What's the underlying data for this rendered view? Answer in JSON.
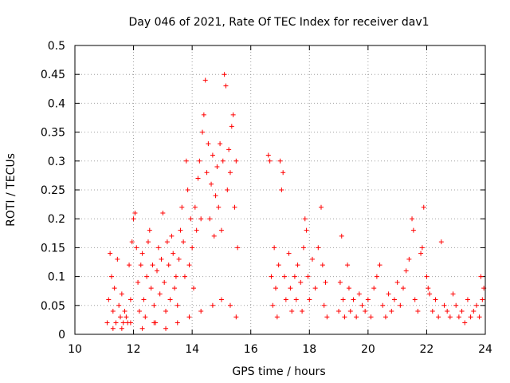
{
  "chart_data": {
    "type": "scatter",
    "title": "Day 046 of 2021, Rate Of TEC Index for receiver dav1",
    "xlabel": "GPS time / hours",
    "ylabel": "ROTI / TECUs",
    "xlim": [
      10,
      24
    ],
    "ylim": [
      0,
      0.5
    ],
    "x_ticks": [
      10,
      12,
      14,
      16,
      18,
      20,
      22,
      24
    ],
    "y_ticks": [
      0,
      0.05,
      0.1,
      0.15,
      0.2,
      0.25,
      0.3,
      0.35,
      0.4,
      0.45,
      0.5
    ],
    "x_tick_labels": [
      "10",
      "12",
      "14",
      "16",
      "18",
      "20",
      "22",
      "24"
    ],
    "y_tick_labels": [
      "0",
      "0.05",
      "0.1",
      "0.15",
      "0.2",
      "0.25",
      "0.3",
      "0.35",
      "0.4",
      "0.45",
      "0.5"
    ],
    "grid": true,
    "marker": "+",
    "color": "#ff0000",
    "series": [
      {
        "points": [
          [
            11.1,
            0.02
          ],
          [
            11.15,
            0.06
          ],
          [
            11.2,
            0.14
          ],
          [
            11.25,
            0.1
          ],
          [
            11.3,
            0.04
          ],
          [
            11.35,
            0.08
          ],
          [
            11.4,
            0.02
          ],
          [
            11.45,
            0.13
          ],
          [
            11.5,
            0.05
          ],
          [
            11.55,
            0.03
          ],
          [
            11.6,
            0.07
          ],
          [
            11.65,
            0.02
          ],
          [
            11.7,
            0.04
          ],
          [
            11.75,
            0.03
          ],
          [
            11.8,
            0.02
          ],
          [
            11.85,
            0.12
          ],
          [
            11.9,
            0.06
          ],
          [
            11.95,
            0.16
          ],
          [
            12.0,
            0.2
          ],
          [
            12.05,
            0.21
          ],
          [
            12.1,
            0.15
          ],
          [
            12.15,
            0.09
          ],
          [
            12.2,
            0.04
          ],
          [
            12.25,
            0.12
          ],
          [
            12.3,
            0.14
          ],
          [
            12.35,
            0.06
          ],
          [
            12.4,
            0.03
          ],
          [
            12.45,
            0.1
          ],
          [
            12.5,
            0.16
          ],
          [
            12.55,
            0.18
          ],
          [
            12.6,
            0.08
          ],
          [
            12.65,
            0.12
          ],
          [
            12.7,
            0.05
          ],
          [
            12.75,
            0.02
          ],
          [
            12.8,
            0.11
          ],
          [
            12.85,
            0.15
          ],
          [
            12.9,
            0.07
          ],
          [
            12.95,
            0.13
          ],
          [
            13.0,
            0.21
          ],
          [
            13.05,
            0.09
          ],
          [
            13.1,
            0.04
          ],
          [
            13.15,
            0.16
          ],
          [
            13.2,
            0.12
          ],
          [
            13.25,
            0.06
          ],
          [
            13.3,
            0.17
          ],
          [
            13.35,
            0.14
          ],
          [
            13.4,
            0.08
          ],
          [
            13.45,
            0.1
          ],
          [
            13.5,
            0.05
          ],
          [
            13.55,
            0.13
          ],
          [
            13.6,
            0.18
          ],
          [
            13.65,
            0.22
          ],
          [
            13.7,
            0.16
          ],
          [
            13.75,
            0.1
          ],
          [
            13.8,
            0.3
          ],
          [
            13.85,
            0.25
          ],
          [
            13.9,
            0.12
          ],
          [
            13.95,
            0.2
          ],
          [
            14.0,
            0.15
          ],
          [
            14.05,
            0.08
          ],
          [
            14.1,
            0.22
          ],
          [
            14.15,
            0.18
          ],
          [
            14.2,
            0.27
          ],
          [
            14.25,
            0.3
          ],
          [
            14.3,
            0.2
          ],
          [
            14.35,
            0.35
          ],
          [
            14.4,
            0.38
          ],
          [
            14.45,
            0.44
          ],
          [
            14.5,
            0.28
          ],
          [
            14.55,
            0.33
          ],
          [
            14.6,
            0.2
          ],
          [
            14.65,
            0.26
          ],
          [
            14.7,
            0.31
          ],
          [
            14.75,
            0.17
          ],
          [
            14.8,
            0.24
          ],
          [
            14.85,
            0.29
          ],
          [
            14.9,
            0.22
          ],
          [
            14.95,
            0.33
          ],
          [
            15.0,
            0.18
          ],
          [
            15.05,
            0.3
          ],
          [
            15.1,
            0.45
          ],
          [
            15.15,
            0.43
          ],
          [
            15.2,
            0.25
          ],
          [
            15.25,
            0.32
          ],
          [
            15.3,
            0.28
          ],
          [
            15.35,
            0.36
          ],
          [
            15.4,
            0.38
          ],
          [
            15.45,
            0.22
          ],
          [
            15.5,
            0.3
          ],
          [
            15.55,
            0.15
          ],
          [
            11.3,
            0.01
          ],
          [
            11.6,
            0.01
          ],
          [
            11.9,
            0.02
          ],
          [
            12.3,
            0.01
          ],
          [
            12.7,
            0.02
          ],
          [
            13.1,
            0.01
          ],
          [
            13.5,
            0.02
          ],
          [
            13.9,
            0.03
          ],
          [
            14.3,
            0.04
          ],
          [
            14.7,
            0.05
          ],
          [
            15.0,
            0.06
          ],
          [
            15.3,
            0.05
          ],
          [
            15.5,
            0.03
          ],
          [
            16.6,
            0.31
          ],
          [
            16.65,
            0.3
          ],
          [
            16.7,
            0.1
          ],
          [
            16.75,
            0.05
          ],
          [
            16.8,
            0.15
          ],
          [
            16.85,
            0.08
          ],
          [
            16.9,
            0.03
          ],
          [
            16.95,
            0.12
          ],
          [
            17.0,
            0.3
          ],
          [
            17.05,
            0.25
          ],
          [
            17.1,
            0.28
          ],
          [
            17.15,
            0.1
          ],
          [
            17.2,
            0.06
          ],
          [
            17.3,
            0.14
          ],
          [
            17.35,
            0.08
          ],
          [
            17.4,
            0.04
          ],
          [
            17.5,
            0.1
          ],
          [
            17.55,
            0.06
          ],
          [
            17.6,
            0.12
          ],
          [
            17.7,
            0.09
          ],
          [
            17.75,
            0.04
          ],
          [
            17.8,
            0.15
          ],
          [
            17.85,
            0.2
          ],
          [
            17.9,
            0.18
          ],
          [
            17.95,
            0.1
          ],
          [
            18.0,
            0.06
          ],
          [
            18.1,
            0.13
          ],
          [
            18.2,
            0.08
          ],
          [
            18.3,
            0.15
          ],
          [
            18.4,
            0.22
          ],
          [
            18.45,
            0.12
          ],
          [
            18.5,
            0.05
          ],
          [
            18.55,
            0.09
          ],
          [
            18.6,
            0.03
          ],
          [
            19.0,
            0.04
          ],
          [
            19.05,
            0.09
          ],
          [
            19.1,
            0.17
          ],
          [
            19.15,
            0.06
          ],
          [
            19.2,
            0.03
          ],
          [
            19.3,
            0.12
          ],
          [
            19.35,
            0.08
          ],
          [
            19.4,
            0.04
          ],
          [
            19.5,
            0.06
          ],
          [
            19.6,
            0.03
          ],
          [
            19.7,
            0.07
          ],
          [
            19.8,
            0.05
          ],
          [
            19.9,
            0.04
          ],
          [
            20.0,
            0.06
          ],
          [
            20.1,
            0.03
          ],
          [
            20.2,
            0.08
          ],
          [
            20.3,
            0.1
          ],
          [
            20.4,
            0.12
          ],
          [
            20.5,
            0.05
          ],
          [
            20.6,
            0.03
          ],
          [
            20.7,
            0.07
          ],
          [
            20.8,
            0.04
          ],
          [
            20.9,
            0.06
          ],
          [
            21.0,
            0.09
          ],
          [
            21.1,
            0.05
          ],
          [
            21.2,
            0.08
          ],
          [
            21.3,
            0.11
          ],
          [
            21.4,
            0.13
          ],
          [
            21.5,
            0.2
          ],
          [
            21.55,
            0.18
          ],
          [
            21.6,
            0.06
          ],
          [
            21.7,
            0.04
          ],
          [
            21.8,
            0.14
          ],
          [
            21.85,
            0.15
          ],
          [
            21.9,
            0.22
          ],
          [
            22.0,
            0.1
          ],
          [
            22.05,
            0.08
          ],
          [
            22.1,
            0.07
          ],
          [
            22.2,
            0.04
          ],
          [
            22.3,
            0.06
          ],
          [
            22.4,
            0.03
          ],
          [
            22.5,
            0.16
          ],
          [
            22.6,
            0.05
          ],
          [
            22.7,
            0.04
          ],
          [
            22.8,
            0.03
          ],
          [
            22.9,
            0.07
          ],
          [
            23.0,
            0.05
          ],
          [
            23.1,
            0.03
          ],
          [
            23.2,
            0.04
          ],
          [
            23.3,
            0.02
          ],
          [
            23.4,
            0.06
          ],
          [
            23.5,
            0.03
          ],
          [
            23.6,
            0.04
          ],
          [
            23.7,
            0.05
          ],
          [
            23.8,
            0.03
          ],
          [
            23.85,
            0.1
          ],
          [
            23.9,
            0.06
          ],
          [
            23.95,
            0.08
          ]
        ]
      }
    ]
  }
}
